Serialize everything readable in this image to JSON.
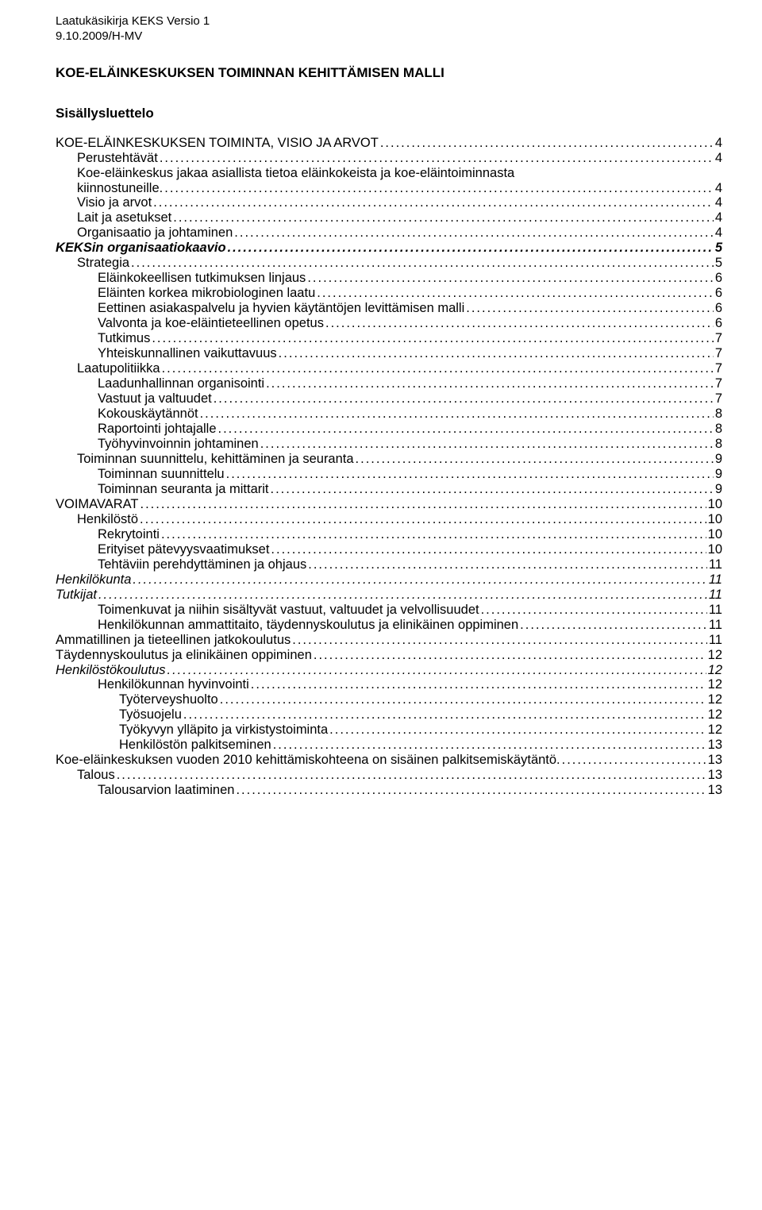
{
  "header": {
    "line1": "Laatukäsikirja KEKS Versio 1",
    "line2": "9.10.2009/H-MV"
  },
  "title": "KOE-ELÄINKESKUKSEN TOIMINNAN KEHITTÄMISEN MALLI",
  "toc_title": "Sisällysluettelo",
  "toc_fontsize": 16.5,
  "dot_color": "#000000",
  "text_color": "#000000",
  "background_color": "#ffffff",
  "entries": [
    {
      "label": "KOE-ELÄINKESKUKSEN TOIMINTA, VISIO JA ARVOT",
      "page": "4",
      "level": 0,
      "style": ""
    },
    {
      "label": "Perustehtävät",
      "page": "4",
      "level": 1,
      "style": ""
    },
    {
      "label": "Koe-eläinkeskus jakaa asiallista tietoa eläinkokeista ja koe-eläintoiminnasta kiinnostuneille.",
      "page": "4",
      "level": 1,
      "style": "",
      "wrap": true
    },
    {
      "label": "Visio ja arvot",
      "page": "4",
      "level": 1,
      "style": ""
    },
    {
      "label": "Lait ja asetukset",
      "page": "4",
      "level": 1,
      "style": ""
    },
    {
      "label": "Organisaatio ja johtaminen",
      "page": "4",
      "level": 1,
      "style": ""
    },
    {
      "label": "KEKSin organisaatiokaavio",
      "page": "5",
      "level": 0,
      "style": "bold italic"
    },
    {
      "label": "Strategia",
      "page": "5",
      "level": 1,
      "style": ""
    },
    {
      "label": "Eläinkokeellisen tutkimuksen linjaus",
      "page": "6",
      "level": 2,
      "style": ""
    },
    {
      "label": "Eläinten korkea mikrobiologinen laatu",
      "page": "6",
      "level": 2,
      "style": ""
    },
    {
      "label": "Eettinen asiakaspalvelu ja hyvien käytäntöjen levittämisen malli",
      "page": "6",
      "level": 2,
      "style": ""
    },
    {
      "label": "Valvonta ja koe-eläintieteellinen opetus",
      "page": "6",
      "level": 2,
      "style": ""
    },
    {
      "label": "Tutkimus",
      "page": "7",
      "level": 2,
      "style": ""
    },
    {
      "label": "Yhteiskunnallinen vaikuttavuus",
      "page": "7",
      "level": 2,
      "style": ""
    },
    {
      "label": "Laatupolitiikka",
      "page": "7",
      "level": 1,
      "style": ""
    },
    {
      "label": "Laadunhallinnan organisointi",
      "page": "7",
      "level": 2,
      "style": ""
    },
    {
      "label": "Vastuut ja valtuudet",
      "page": "7",
      "level": 2,
      "style": ""
    },
    {
      "label": "Kokouskäytännöt",
      "page": "8",
      "level": 2,
      "style": ""
    },
    {
      "label": "Raportointi johtajalle",
      "page": "8",
      "level": 2,
      "style": ""
    },
    {
      "label": "Työhyvinvoinnin johtaminen",
      "page": "8",
      "level": 2,
      "style": ""
    },
    {
      "label": "Toiminnan suunnittelu, kehittäminen ja seuranta",
      "page": "9",
      "level": 1,
      "style": ""
    },
    {
      "label": "Toiminnan suunnittelu",
      "page": "9",
      "level": 2,
      "style": ""
    },
    {
      "label": "Toiminnan seuranta ja mittarit",
      "page": "9",
      "level": 2,
      "style": ""
    },
    {
      "label": "VOIMAVARAT",
      "page": "10",
      "level": 0,
      "style": ""
    },
    {
      "label": "Henkilöstö",
      "page": "10",
      "level": 1,
      "style": ""
    },
    {
      "label": "Rekrytointi",
      "page": "10",
      "level": 2,
      "style": ""
    },
    {
      "label": "Erityiset pätevyysvaatimukset",
      "page": "10",
      "level": 2,
      "style": ""
    },
    {
      "label": "Tehtäviin perehdyttäminen ja ohjaus",
      "page": "11",
      "level": 2,
      "style": ""
    },
    {
      "label": "Henkilökunta",
      "page": "11",
      "level": 0,
      "style": "italic"
    },
    {
      "label": "Tutkijat",
      "page": "11",
      "level": 0,
      "style": "italic"
    },
    {
      "label": "Toimenkuvat ja niihin sisältyvät vastuut, valtuudet ja velvollisuudet",
      "page": "11",
      "level": 2,
      "style": ""
    },
    {
      "label": "Henkilökunnan ammattitaito, täydennyskoulutus ja elinikäinen oppiminen",
      "page": "11",
      "level": 2,
      "style": ""
    },
    {
      "label": "Ammatillinen ja tieteellinen jatkokoulutus",
      "page": "11",
      "level": 0,
      "style": ""
    },
    {
      "label": "Täydennyskoulutus ja elinikäinen oppiminen",
      "page": "12",
      "level": 0,
      "style": ""
    },
    {
      "label": "Henkilöstökoulutus",
      "page": "12",
      "level": 0,
      "style": "italic"
    },
    {
      "label": "Henkilökunnan hyvinvointi",
      "page": "12",
      "level": 2,
      "style": ""
    },
    {
      "label": "Työterveyshuolto",
      "page": "12",
      "level": 3,
      "style": ""
    },
    {
      "label": "Työsuojelu",
      "page": "12",
      "level": 3,
      "style": ""
    },
    {
      "label": "Työkyvyn ylläpito ja virkistystoiminta",
      "page": "12",
      "level": 3,
      "style": ""
    },
    {
      "label": "Henkilöstön palkitseminen",
      "page": "13",
      "level": 3,
      "style": ""
    },
    {
      "label": "Koe-eläinkeskuksen vuoden 2010 kehittämiskohteena on sisäinen palkitsemiskäytäntö.",
      "page": "13",
      "level": 0,
      "style": ""
    },
    {
      "label": "Talous",
      "page": "13",
      "level": 1,
      "style": ""
    },
    {
      "label": "Talousarvion laatiminen",
      "page": "13",
      "level": 2,
      "style": ""
    }
  ]
}
